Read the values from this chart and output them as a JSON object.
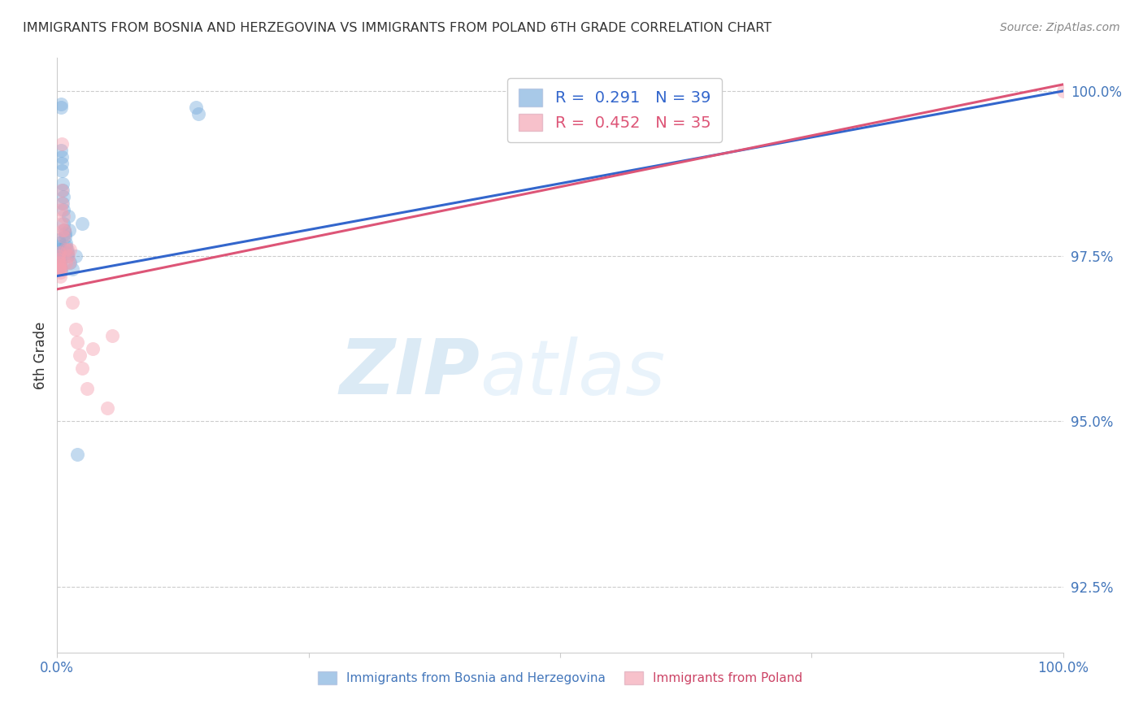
{
  "title": "IMMIGRANTS FROM BOSNIA AND HERZEGOVINA VS IMMIGRANTS FROM POLAND 6TH GRADE CORRELATION CHART",
  "source": "Source: ZipAtlas.com",
  "ylabel": "6th Grade",
  "right_yticks": [
    100.0,
    97.5,
    95.0,
    92.5
  ],
  "right_ytick_labels": [
    "100.0%",
    "97.5%",
    "95.0%",
    "92.5%"
  ],
  "legend_text_blue": "R =  0.291   N = 39",
  "legend_text_pink": "R =  0.452   N = 35",
  "watermark_zip": "ZIP",
  "watermark_atlas": "atlas",
  "blue_color": "#7aaddc",
  "pink_color": "#f4a0b0",
  "blue_line_color": "#3366cc",
  "pink_line_color": "#dd5577",
  "blue_scatter_x": [
    0.15,
    0.18,
    0.2,
    0.22,
    0.25,
    0.27,
    0.28,
    0.3,
    0.32,
    0.35,
    0.38,
    0.4,
    0.42,
    0.45,
    0.48,
    0.5,
    0.52,
    0.55,
    0.58,
    0.6,
    0.62,
    0.65,
    0.7,
    0.75,
    0.8,
    0.85,
    0.9,
    0.95,
    1.0,
    1.05,
    1.1,
    1.2,
    1.3,
    1.5,
    1.8,
    2.0,
    2.5,
    13.8,
    14.0
  ],
  "blue_scatter_y": [
    97.75,
    97.6,
    97.55,
    97.65,
    97.7,
    97.5,
    97.45,
    97.4,
    97.35,
    97.3,
    99.75,
    99.8,
    99.1,
    98.8,
    99.0,
    98.9,
    98.5,
    98.6,
    98.3,
    98.4,
    98.2,
    98.0,
    97.9,
    97.8,
    97.85,
    97.7,
    97.65,
    97.6,
    97.5,
    97.55,
    98.1,
    97.9,
    97.4,
    97.3,
    97.5,
    94.5,
    98.0,
    99.75,
    99.65
  ],
  "pink_scatter_x": [
    0.12,
    0.15,
    0.18,
    0.2,
    0.22,
    0.25,
    0.28,
    0.3,
    0.32,
    0.35,
    0.4,
    0.42,
    0.45,
    0.48,
    0.5,
    0.55,
    0.6,
    0.65,
    0.7,
    0.8,
    0.9,
    1.0,
    1.1,
    1.2,
    1.3,
    1.5,
    1.8,
    2.0,
    2.2,
    2.5,
    3.0,
    3.5,
    5.0,
    5.5,
    100.0
  ],
  "pink_scatter_y": [
    97.5,
    97.45,
    97.4,
    97.55,
    97.35,
    97.3,
    97.25,
    97.2,
    97.35,
    97.3,
    98.2,
    98.0,
    99.2,
    98.5,
    98.3,
    97.9,
    97.8,
    98.1,
    97.9,
    97.6,
    97.4,
    97.6,
    97.5,
    97.4,
    97.6,
    96.8,
    96.4,
    96.2,
    96.0,
    95.8,
    95.5,
    96.1,
    95.2,
    96.3,
    100.0
  ],
  "xmin": 0.0,
  "xmax": 100.0,
  "ymin": 91.5,
  "ymax": 100.5,
  "blue_trend": [
    97.2,
    100.0
  ],
  "pink_trend": [
    97.0,
    100.1
  ],
  "bottom_legend_blue": "Immigrants from Bosnia and Herzegovina",
  "bottom_legend_pink": "Immigrants from Poland"
}
